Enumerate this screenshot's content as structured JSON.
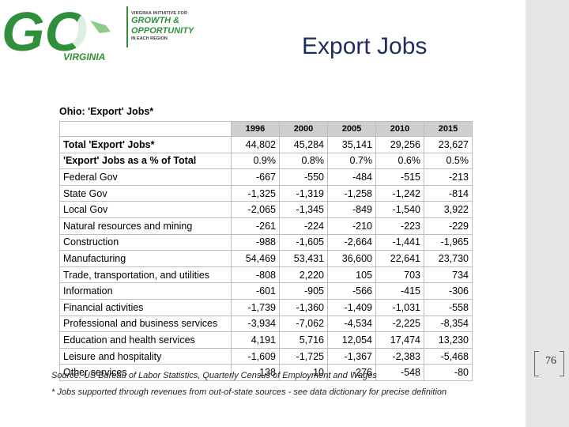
{
  "slide": {
    "title": "Export Jobs",
    "page_number": "76"
  },
  "logo": {
    "lead_text": "VIRGINIA INITIATIVE FOR",
    "line1": "GROWTH &",
    "line2": "OPPORTUNITY",
    "tail_text": "IN EACH REGION",
    "mark_text": "GO",
    "state_text": "VIRGINIA"
  },
  "table": {
    "title": "Ohio: 'Export' Jobs*",
    "years": [
      "1996",
      "2000",
      "2005",
      "2010",
      "2015"
    ],
    "rows": [
      {
        "label": "Total 'Export' Jobs*",
        "values": [
          "44,802",
          "45,284",
          "35,141",
          "29,256",
          "23,627"
        ]
      },
      {
        "label": "'Export' Jobs as a % of Total",
        "values": [
          "0.9%",
          "0.8%",
          "0.7%",
          "0.6%",
          "0.5%"
        ]
      },
      {
        "label": "Federal Gov",
        "values": [
          "-667",
          "-550",
          "-484",
          "-515",
          "-213"
        ]
      },
      {
        "label": "State Gov",
        "values": [
          "-1,325",
          "-1,319",
          "-1,258",
          "-1,242",
          "-814"
        ]
      },
      {
        "label": "Local Gov",
        "values": [
          "-2,065",
          "-1,345",
          "-849",
          "-1,540",
          "3,922"
        ]
      },
      {
        "label": "Natural resources and mining",
        "values": [
          "-261",
          "-224",
          "-210",
          "-223",
          "-229"
        ]
      },
      {
        "label": "Construction",
        "values": [
          "-988",
          "-1,605",
          "-2,664",
          "-1,441",
          "-1,965"
        ]
      },
      {
        "label": "Manufacturing",
        "values": [
          "54,469",
          "53,431",
          "36,600",
          "22,641",
          "23,730"
        ]
      },
      {
        "label": "Trade, transportation, and utilities",
        "values": [
          "-808",
          "2,220",
          "105",
          "703",
          "734"
        ]
      },
      {
        "label": "Information",
        "values": [
          "-601",
          "-905",
          "-566",
          "-415",
          "-306"
        ]
      },
      {
        "label": "Financial activities",
        "values": [
          "-1,739",
          "-1,360",
          "-1,409",
          "-1,031",
          "-558"
        ]
      },
      {
        "label": "Professional and business services",
        "values": [
          "-3,934",
          "-7,062",
          "-4,534",
          "-2,225",
          "-8,354"
        ]
      },
      {
        "label": "Education and health services",
        "values": [
          "4,191",
          "5,716",
          "12,054",
          "17,474",
          "13,230"
        ]
      },
      {
        "label": "Leisure and hospitality",
        "values": [
          "-1,609",
          "-1,725",
          "-1,367",
          "-2,383",
          "-5,468"
        ]
      },
      {
        "label": "Other services",
        "values": [
          "138",
          "10",
          "-276",
          "-548",
          "-80"
        ]
      }
    ],
    "source": "Source: US Bureau of Labor Statistics, Quarterly Census of Employment and Wages",
    "footnote": "* Jobs supported through revenues  from out-of-state sources - see data dictionary for precise definition"
  },
  "colors": {
    "brand_green": "#2f8f3a",
    "title_navy": "#1f2f5a",
    "header_gray": "#cfcfcf"
  }
}
